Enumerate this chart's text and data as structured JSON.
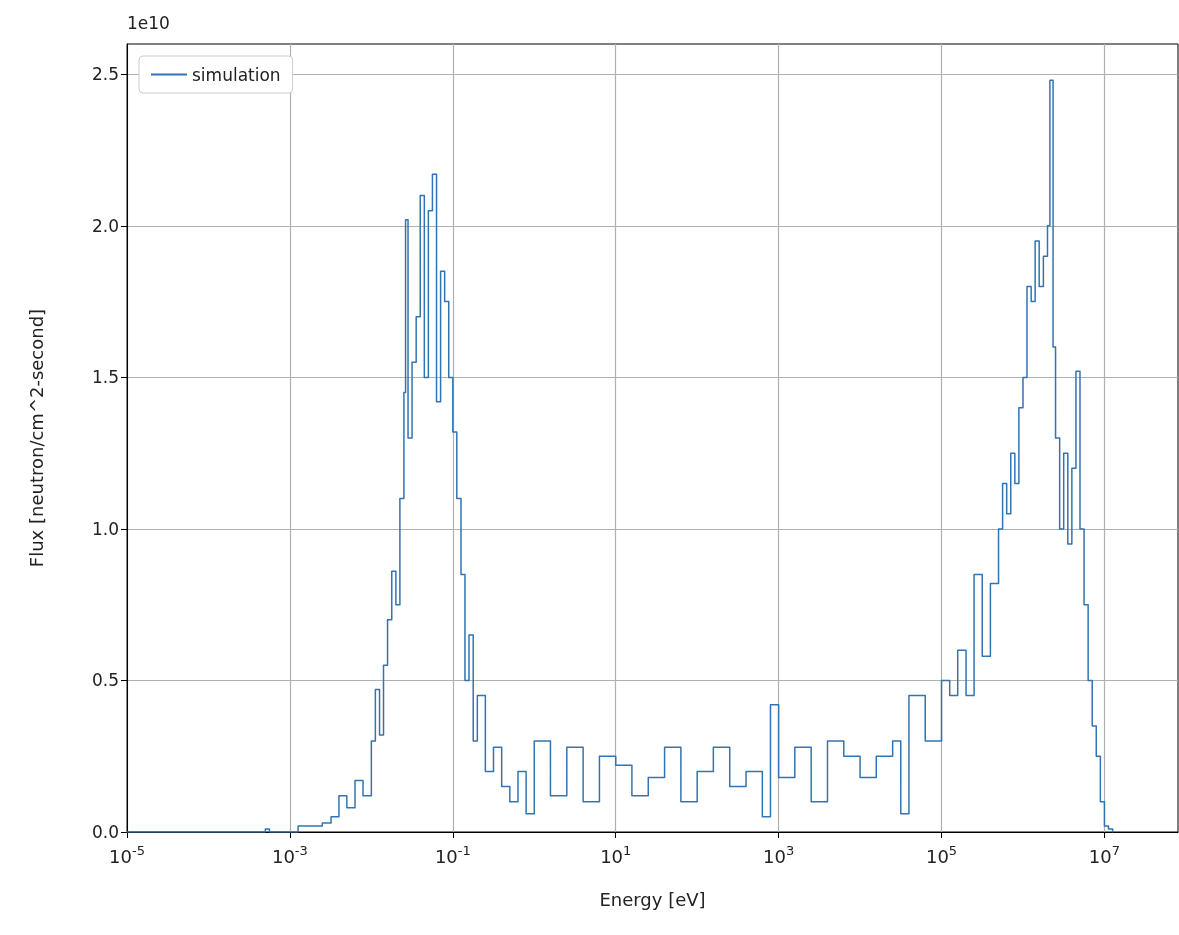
{
  "chart_data": {
    "type": "step",
    "xlabel": "Energy [eV]",
    "ylabel": "Flux [neutron/cm^2-second]",
    "annotations": [
      "1e10"
    ],
    "log": "x",
    "grid": true,
    "legend": "top left",
    "marker": "none",
    "line_style": "solid",
    "xlim": [
      1e-05,
      80000000.0
    ],
    "ylim": [
      0,
      2.6
    ],
    "xticks": [
      {
        "value": 1e-05,
        "label": "10$^{-5}$"
      },
      {
        "value": 0.001,
        "label": "10$^{-3}$"
      },
      {
        "value": 0.1,
        "label": "10$^{-1}$"
      },
      {
        "value": 10,
        "label": "10$^{1}$"
      },
      {
        "value": 1000,
        "label": "10$^{3}$"
      },
      {
        "value": 100000,
        "label": "10$^{5}$"
      },
      {
        "value": 10000000,
        "label": "10$^{7}$"
      }
    ],
    "yticks": [
      {
        "value": 0,
        "label": "0.0"
      },
      {
        "value": 0.5,
        "label": "0.5"
      },
      {
        "value": 1,
        "label": "1.0"
      },
      {
        "value": 1.5,
        "label": "1.5"
      },
      {
        "value": 2,
        "label": "2.0"
      },
      {
        "value": 2.5,
        "label": "2.5"
      }
    ],
    "series": [
      {
        "name": "simulation",
        "color": "#3274b3",
        "x": [
          1e-05,
          0.00032,
          0.0005,
          0.00056,
          0.00126,
          0.0025,
          0.0032,
          0.004,
          0.005,
          0.0063,
          0.0079,
          0.01,
          0.0112,
          0.0126,
          0.0141,
          0.0158,
          0.0178,
          0.02,
          0.0224,
          0.0251,
          0.0263,
          0.0282,
          0.0316,
          0.0355,
          0.0398,
          0.0447,
          0.0501,
          0.0562,
          0.0631,
          0.0708,
          0.0794,
          0.0891,
          0.1,
          0.112,
          0.126,
          0.141,
          0.158,
          0.178,
          0.2,
          0.251,
          0.316,
          0.398,
          0.501,
          0.631,
          0.794,
          1,
          1.58,
          2.51,
          3.98,
          6.31,
          10,
          15.8,
          25.1,
          39.8,
          63.1,
          100,
          158,
          251,
          398,
          631,
          794,
          1000,
          1580,
          2510,
          3980,
          6310,
          10000,
          15800,
          25100,
          31600,
          39800,
          63100,
          100000,
          126000,
          158000,
          200000,
          251000,
          316000,
          398000,
          501000,
          562000,
          631000,
          708000,
          794000,
          891000,
          1000000,
          1120000,
          1260000,
          1410000,
          1580000,
          1780000,
          2000000,
          2140000,
          2340000,
          2510000,
          2820000,
          3160000,
          3550000,
          3980000,
          4470000,
          5010000,
          5620000,
          6310000,
          7080000,
          7940000,
          8910000,
          10000000,
          11200000,
          12600000
        ],
        "values": [
          0,
          0,
          0.01,
          0,
          0.02,
          0.03,
          0.05,
          0.12,
          0.08,
          0.17,
          0.12,
          0.3,
          0.47,
          0.32,
          0.55,
          0.7,
          0.86,
          0.75,
          1.1,
          1.45,
          2.02,
          1.3,
          1.55,
          1.7,
          2.1,
          1.5,
          2.05,
          2.17,
          1.42,
          1.85,
          1.75,
          1.5,
          1.32,
          1.1,
          0.85,
          0.5,
          0.65,
          0.3,
          0.45,
          0.2,
          0.28,
          0.15,
          0.1,
          0.2,
          0.06,
          0.3,
          0.12,
          0.28,
          0.1,
          0.25,
          0.22,
          0.12,
          0.18,
          0.28,
          0.1,
          0.2,
          0.28,
          0.15,
          0.2,
          0.05,
          0.42,
          0.18,
          0.28,
          0.1,
          0.3,
          0.25,
          0.18,
          0.25,
          0.3,
          0.06,
          0.45,
          0.3,
          0.5,
          0.45,
          0.6,
          0.45,
          0.85,
          0.58,
          0.82,
          1.0,
          1.15,
          1.05,
          1.25,
          1.15,
          1.4,
          1.5,
          1.8,
          1.75,
          1.95,
          1.8,
          1.9,
          2.0,
          2.48,
          1.6,
          1.3,
          1.0,
          1.25,
          0.95,
          1.2,
          1.52,
          1.0,
          0.75,
          0.5,
          0.35,
          0.25,
          0.1,
          0.02,
          0.01,
          0
        ]
      }
    ]
  }
}
